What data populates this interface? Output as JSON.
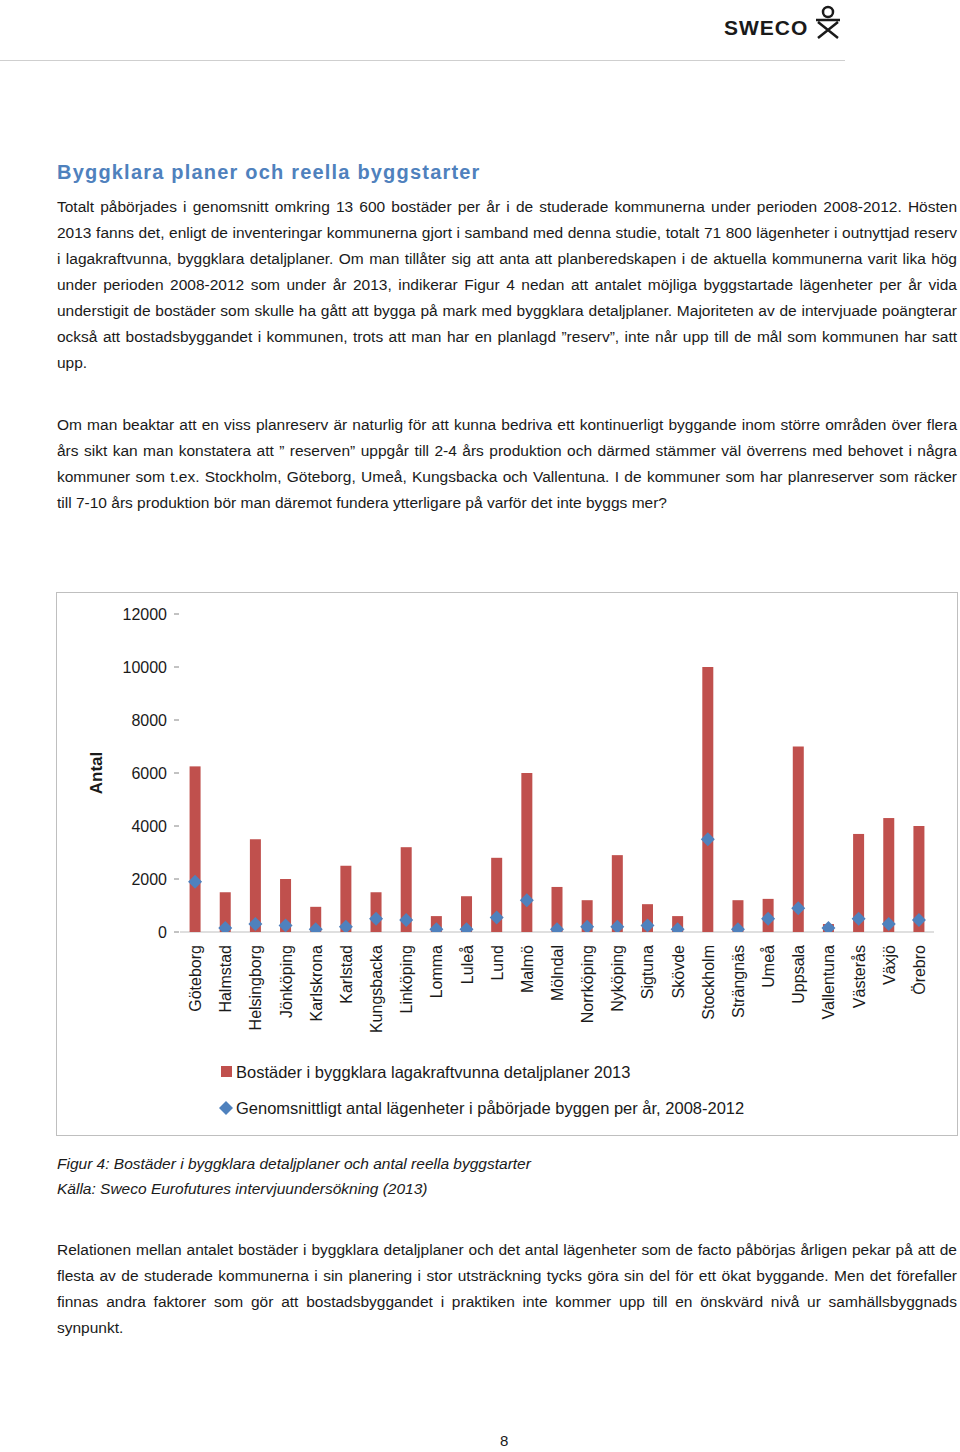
{
  "header": {
    "logo": "SWECO"
  },
  "heading": "Byggklara planer och reella byggstarter",
  "paragraphs": [
    "Totalt påbörjades i genomsnitt omkring 13 600 bostäder per år i de studerade kommunerna under perioden 2008-2012. Hösten 2013 fanns det, enligt de inventeringar kommunerna gjort i samband med denna studie, totalt 71 800 lägenheter i outnyttjad reserv i lagakraftvunna, byggklara detaljplaner. Om man tillåter sig att anta att planberedskapen i de aktuella kommunerna varit lika hög under perioden 2008-2012 som under år 2013, indikerar Figur 4 nedan att antalet möjliga byggstartade lägenheter per år vida understigit de bostäder som skulle ha gått att bygga på mark med byggklara detaljplaner. Majoriteten av de intervjuade poängterar också att bostadsbyggandet i kommunen, trots att man har en planlagd ”reserv”, inte når upp till de mål som kommunen har satt upp.",
    "Om man beaktar att en viss planreserv är naturlig för att kunna bedriva ett kontinuerligt byggande inom större områden över flera års sikt kan man konstatera att ” reserven” uppgår till 2-4 års produktion och därmed stämmer väl överrens med behovet i några kommuner som t.ex. Stockholm, Göteborg, Umeå, Kungsbacka och Vallentuna. I de kommuner som har planreserver som räcker till 7-10 års produktion bör man däremot fundera ytterligare på varför det inte byggs mer?"
  ],
  "chart_data": {
    "type": "bar",
    "ylabel": "Antal",
    "categories": [
      "Göteborg",
      "Halmstad",
      "Helsingborg",
      "Jönköping",
      "Karlskrona",
      "Karlstad",
      "Kungsbacka",
      "Linköping",
      "Lomma",
      "Luleå",
      "Lund",
      "Malmö",
      "Mölndal",
      "Norrköping",
      "Nyköping",
      "Sigtuna",
      "Skövde",
      "Stockholm",
      "Strängnäs",
      "Umeå",
      "Uppsala",
      "Vallentuna",
      "Västerås",
      "Växjö",
      "Örebro"
    ],
    "series": [
      {
        "name": "Bostäder i byggklara lagakraftvunna detaljplaner 2013",
        "type": "bar",
        "color": "#c0504d",
        "values": [
          6250,
          1500,
          3500,
          2000,
          950,
          2500,
          1500,
          3200,
          600,
          1350,
          2800,
          6000,
          1700,
          1200,
          2900,
          1050,
          600,
          10000,
          1200,
          1250,
          7000,
          300,
          3700,
          4300,
          4000
        ]
      },
      {
        "name": "Genomsnittligt antal lägenheter i påbörjade byggen per år, 2008-2012",
        "type": "line",
        "color": "#4f81bd",
        "marker": "diamond",
        "line_style": "none",
        "values": [
          1900,
          150,
          300,
          250,
          100,
          200,
          500,
          450,
          100,
          100,
          550,
          1200,
          100,
          200,
          200,
          250,
          100,
          3500,
          100,
          500,
          900,
          150,
          500,
          300,
          450
        ]
      }
    ],
    "ylim": [
      0,
      12000
    ],
    "yticks": [
      0,
      2000,
      4000,
      6000,
      8000,
      10000,
      12000
    ],
    "grid": false,
    "legend": "bottom"
  },
  "caption": [
    "Figur 4: Bostäder i byggklara detaljplaner och antal reella byggstarter",
    "Källa: Sweco Eurofutures intervjuundersökning (2013)"
  ],
  "paragraphs_after": [
    "Relationen mellan antalet bostäder i byggklara detaljplaner och det antal lägenheter som de facto påbörjas årligen pekar på att de flesta av de studerade kommunerna i sin planering i stor utsträckning tycks göra sin del för ett ökat byggande. Men det förefaller finnas andra faktorer som gör att bostadsbyggandet i praktiken inte kommer upp till en önskvärd nivå ur samhällsbyggnads synpunkt."
  ],
  "page_number": "8"
}
